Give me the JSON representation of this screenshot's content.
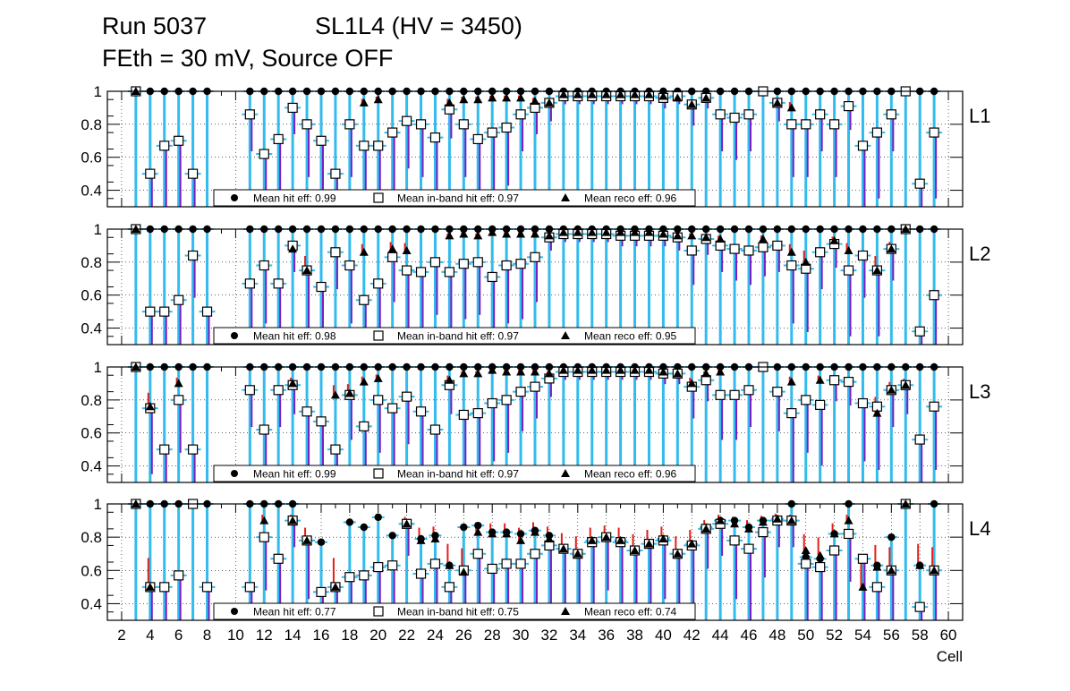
{
  "header": {
    "run": "Run 5037",
    "chamber": "SL1L4 (HV = 3450)",
    "conditions": "FEth = 30 mV, Source OFF"
  },
  "chart_data": {
    "type": "scatter",
    "x_axis": {
      "label": "Cell",
      "range": [
        1,
        61
      ],
      "ticks": [
        2,
        4,
        6,
        8,
        10,
        12,
        14,
        16,
        18,
        20,
        22,
        24,
        26,
        28,
        30,
        32,
        34,
        36,
        38,
        40,
        42,
        44,
        46,
        48,
        50,
        52,
        54,
        56,
        58,
        60
      ]
    },
    "y_axis": {
      "range": [
        0.3,
        1.0
      ],
      "ticks": [
        0.4,
        0.6,
        0.8,
        1.0
      ],
      "tick_labels": [
        "0.4",
        "0.6",
        "0.8",
        "1"
      ]
    },
    "grid": true,
    "legend_placement": "bottom-center",
    "series_colors": {
      "hit": "#000000",
      "inband": "#000000",
      "reco": "#000000"
    },
    "error_colors": {
      "hit": "#33bbee",
      "inband": "#7a1fbf",
      "reco": "#e0201b"
    },
    "panels": [
      {
        "layer": "L1",
        "legend": {
          "hit": "Mean hit  eff: 0.99",
          "inband": "Mean in-band hit eff: 0.97",
          "reco": "Mean reco eff: 0.96"
        },
        "cells": [
          3,
          4,
          5,
          6,
          7,
          8,
          11,
          12,
          13,
          14,
          15,
          16,
          17,
          18,
          19,
          20,
          21,
          22,
          23,
          24,
          25,
          26,
          27,
          28,
          29,
          30,
          31,
          32,
          33,
          34,
          35,
          36,
          37,
          38,
          39,
          40,
          41,
          42,
          43,
          44,
          45,
          46,
          47,
          48,
          49,
          50,
          51,
          52,
          53,
          54,
          55,
          56,
          57,
          58,
          59
        ],
        "hit": [
          1,
          1,
          1,
          1,
          1,
          1,
          1,
          1,
          1,
          1,
          1,
          1,
          1,
          1,
          1,
          1,
          1,
          1,
          1,
          1,
          1,
          1,
          1,
          1,
          1,
          1,
          1,
          1,
          1,
          1,
          1,
          1,
          1,
          1,
          1,
          1,
          1,
          1,
          1,
          1,
          1,
          1,
          1,
          1,
          1,
          1,
          1,
          1,
          1,
          1,
          1,
          1,
          1,
          1,
          1
        ],
        "inband": [
          1,
          0.5,
          0.67,
          0.7,
          0.5,
          null,
          0.86,
          0.62,
          0.71,
          0.9,
          0.8,
          0.7,
          0.5,
          0.8,
          0.67,
          0.67,
          0.75,
          0.82,
          0.8,
          0.72,
          0.89,
          0.8,
          0.71,
          0.75,
          0.78,
          0.86,
          0.9,
          0.93,
          0.97,
          0.97,
          0.97,
          0.97,
          0.97,
          0.97,
          0.97,
          0.96,
          0.97,
          0.92,
          0.96,
          0.86,
          0.84,
          0.86,
          1,
          0.93,
          0.8,
          0.8,
          0.86,
          0.8,
          0.91,
          0.67,
          0.75,
          0.86,
          1,
          0.44,
          0.75
        ],
        "reco": [
          1,
          null,
          null,
          null,
          null,
          null,
          null,
          null,
          null,
          null,
          null,
          null,
          null,
          null,
          0.93,
          0.95,
          null,
          null,
          null,
          null,
          0.93,
          0.95,
          0.95,
          0.96,
          0.96,
          0.96,
          0.94,
          0.93,
          0.98,
          0.98,
          0.98,
          0.98,
          0.98,
          0.98,
          0.98,
          0.97,
          0.96,
          0.92,
          0.96,
          null,
          null,
          null,
          null,
          0.93,
          0.9,
          null,
          null,
          null,
          null,
          null,
          null,
          null,
          null,
          null,
          null
        ]
      },
      {
        "layer": "L2",
        "legend": {
          "hit": "Mean hit  eff: 0.98",
          "inband": "Mean in-band hit eff: 0.97",
          "reco": "Mean reco eff: 0.95"
        },
        "cells": [
          3,
          4,
          5,
          6,
          7,
          8,
          11,
          12,
          13,
          14,
          15,
          16,
          17,
          18,
          19,
          20,
          21,
          22,
          23,
          24,
          25,
          26,
          27,
          28,
          29,
          30,
          31,
          32,
          33,
          34,
          35,
          36,
          37,
          38,
          39,
          40,
          41,
          42,
          43,
          44,
          45,
          46,
          47,
          48,
          49,
          50,
          51,
          52,
          53,
          54,
          55,
          56,
          57,
          58,
          59
        ],
        "hit": [
          1,
          1,
          1,
          1,
          1,
          1,
          1,
          1,
          1,
          1,
          1,
          1,
          1,
          1,
          1,
          1,
          1,
          1,
          1,
          1,
          1,
          1,
          1,
          1,
          1,
          1,
          1,
          1,
          1,
          1,
          1,
          1,
          1,
          1,
          1,
          1,
          1,
          1,
          1,
          1,
          1,
          1,
          1,
          1,
          1,
          1,
          1,
          1,
          1,
          1,
          1,
          1,
          1,
          1,
          1
        ],
        "inband": [
          1,
          0.5,
          0.5,
          0.57,
          0.84,
          0.5,
          0.67,
          0.78,
          0.67,
          0.9,
          0.75,
          0.65,
          0.86,
          0.78,
          0.57,
          0.67,
          0.83,
          0.75,
          0.74,
          0.8,
          0.74,
          0.79,
          0.8,
          0.71,
          0.78,
          0.79,
          0.83,
          0.95,
          0.97,
          0.97,
          0.97,
          0.97,
          0.96,
          0.96,
          0.96,
          0.96,
          0.95,
          0.87,
          0.94,
          0.9,
          0.88,
          0.87,
          0.89,
          0.9,
          0.78,
          0.76,
          0.86,
          0.91,
          0.75,
          0.84,
          0.75,
          0.88,
          1,
          0.38,
          0.6
        ],
        "reco": [
          1,
          null,
          null,
          null,
          null,
          null,
          null,
          null,
          null,
          0.88,
          0.75,
          null,
          null,
          null,
          0.86,
          null,
          0.88,
          0.87,
          null,
          null,
          0.96,
          0.97,
          0.96,
          0.98,
          0.97,
          0.97,
          0.97,
          0.96,
          0.98,
          0.98,
          0.98,
          0.98,
          0.98,
          0.98,
          0.98,
          0.97,
          0.96,
          0.96,
          0.95,
          0.94,
          null,
          null,
          0.94,
          null,
          0.86,
          0.8,
          null,
          0.93,
          0.87,
          null,
          0.75,
          0.88,
          1,
          null,
          null
        ]
      },
      {
        "layer": "L3",
        "legend": {
          "hit": "Mean hit  eff: 0.99",
          "inband": "Mean in-band hit eff: 0.97",
          "reco": "Mean reco eff: 0.96"
        },
        "cells": [
          3,
          4,
          5,
          6,
          7,
          8,
          11,
          12,
          13,
          14,
          15,
          16,
          17,
          18,
          19,
          20,
          21,
          22,
          23,
          24,
          25,
          26,
          27,
          28,
          29,
          30,
          31,
          32,
          33,
          34,
          35,
          36,
          37,
          38,
          39,
          40,
          41,
          42,
          43,
          44,
          45,
          46,
          47,
          48,
          49,
          50,
          51,
          52,
          53,
          54,
          55,
          56,
          57,
          58,
          59
        ],
        "hit": [
          1,
          1,
          1,
          1,
          1,
          1,
          1,
          1,
          1,
          1,
          1,
          1,
          1,
          1,
          1,
          1,
          1,
          1,
          1,
          1,
          1,
          1,
          1,
          1,
          1,
          1,
          1,
          1,
          1,
          1,
          1,
          1,
          1,
          1,
          1,
          1,
          1,
          1,
          1,
          1,
          1,
          1,
          1,
          1,
          1,
          1,
          1,
          1,
          1,
          1,
          1,
          1,
          1,
          1,
          1
        ],
        "inband": [
          1,
          0.75,
          0.5,
          0.8,
          0.5,
          null,
          0.86,
          0.62,
          0.86,
          0.89,
          0.73,
          0.67,
          0.5,
          0.83,
          0.64,
          0.8,
          0.75,
          0.82,
          0.73,
          0.62,
          0.89,
          0.71,
          0.72,
          0.78,
          0.8,
          0.85,
          0.88,
          0.93,
          0.97,
          0.97,
          0.97,
          0.97,
          0.97,
          0.97,
          0.97,
          0.96,
          0.96,
          0.88,
          0.92,
          0.83,
          0.83,
          0.86,
          1,
          0.85,
          0.72,
          0.8,
          0.77,
          0.92,
          0.91,
          0.78,
          0.76,
          0.86,
          0.89,
          0.56,
          0.76
        ],
        "reco": [
          1,
          0.76,
          null,
          0.9,
          null,
          null,
          null,
          null,
          null,
          0.9,
          null,
          null,
          0.83,
          0.84,
          0.91,
          0.93,
          null,
          null,
          null,
          null,
          0.92,
          0.96,
          0.96,
          0.98,
          0.97,
          0.97,
          0.97,
          0.96,
          0.98,
          0.98,
          0.98,
          0.98,
          0.98,
          0.98,
          0.98,
          0.97,
          0.96,
          0.9,
          0.96,
          0.97,
          null,
          null,
          null,
          null,
          0.91,
          null,
          0.92,
          null,
          null,
          null,
          0.72,
          0.86,
          0.89,
          null,
          null
        ]
      },
      {
        "layer": "L4",
        "legend": {
          "hit": "Mean hit  eff: 0.77",
          "inband": "Mean in-band hit eff: 0.75",
          "reco": "Mean reco eff: 0.74"
        },
        "cells": [
          3,
          4,
          5,
          6,
          7,
          8,
          11,
          12,
          13,
          14,
          15,
          16,
          17,
          18,
          19,
          20,
          21,
          22,
          23,
          24,
          25,
          26,
          27,
          28,
          29,
          30,
          31,
          32,
          33,
          34,
          35,
          36,
          37,
          38,
          39,
          40,
          41,
          42,
          43,
          44,
          45,
          46,
          47,
          48,
          49,
          50,
          51,
          52,
          53,
          54,
          55,
          56,
          57,
          58,
          59
        ],
        "hit": [
          1,
          1,
          1,
          1,
          1,
          1,
          1,
          1,
          1,
          1,
          0.78,
          0.77,
          0.5,
          0.89,
          0.86,
          0.92,
          0.81,
          0.88,
          0.79,
          0.81,
          0.63,
          0.86,
          0.87,
          0.83,
          0.83,
          0.82,
          0.84,
          0.81,
          0.73,
          0.7,
          0.78,
          0.8,
          0.78,
          0.72,
          0.76,
          0.79,
          0.7,
          0.76,
          0.86,
          0.9,
          0.9,
          0.86,
          0.9,
          0.91,
          1,
          0.68,
          0.67,
          0.82,
          1,
          0.67,
          0.63,
          0.8,
          1,
          0.63,
          1
        ],
        "inband": [
          1,
          0.5,
          0.5,
          0.57,
          1,
          0.5,
          0.5,
          0.8,
          0.67,
          0.9,
          0.78,
          0.47,
          0.5,
          0.56,
          0.57,
          0.62,
          0.63,
          0.88,
          0.58,
          0.64,
          0.5,
          0.6,
          0.7,
          0.61,
          0.64,
          0.64,
          0.7,
          0.75,
          0.73,
          0.7,
          0.77,
          0.8,
          0.77,
          0.72,
          0.76,
          0.78,
          0.7,
          0.75,
          0.85,
          0.88,
          0.78,
          0.73,
          0.83,
          0.9,
          0.9,
          0.64,
          0.62,
          0.72,
          0.82,
          0.67,
          0.5,
          0.6,
          1,
          0.38,
          0.6
        ],
        "reco": [
          1,
          0.5,
          null,
          null,
          null,
          null,
          null,
          0.9,
          null,
          0.9,
          0.78,
          null,
          0.5,
          null,
          null,
          null,
          null,
          0.88,
          0.78,
          0.79,
          0.63,
          0.59,
          0.83,
          0.82,
          0.82,
          0.78,
          0.83,
          0.79,
          0.73,
          0.7,
          0.78,
          0.8,
          0.78,
          0.72,
          0.76,
          0.79,
          0.7,
          0.76,
          0.85,
          0.9,
          0.88,
          0.85,
          0.89,
          0.91,
          0.9,
          0.72,
          0.69,
          0.82,
          0.9,
          0.5,
          0.62,
          0.6,
          1,
          0.63,
          0.6
        ]
      }
    ]
  }
}
